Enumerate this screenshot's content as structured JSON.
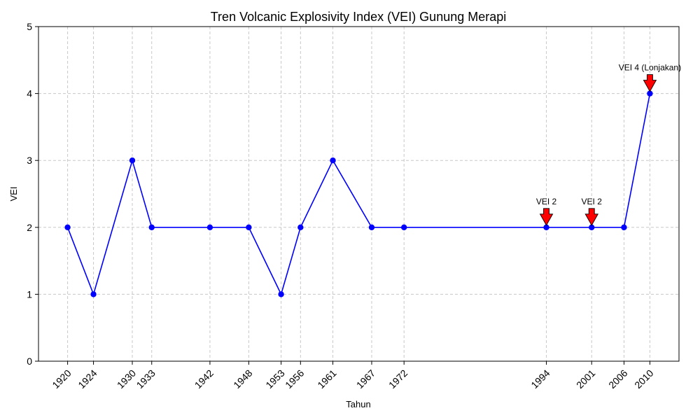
{
  "chart_data": {
    "type": "line",
    "title": "Tren Volcanic Explosivity Index (VEI) Gunung Merapi",
    "xlabel": "Tahun",
    "ylabel": "VEI",
    "x": [
      1920,
      1924,
      1930,
      1933,
      1942,
      1948,
      1953,
      1956,
      1961,
      1967,
      1972,
      1994,
      2001,
      2006,
      2010
    ],
    "xtick_labels": [
      "1920",
      "1924",
      "1930",
      "1933",
      "1942",
      "1948",
      "1953",
      "1956",
      "1961",
      "1967",
      "1972",
      "1994",
      "2001",
      "2006",
      "2010"
    ],
    "series": [
      {
        "name": "VEI",
        "values": [
          2,
          1,
          3,
          2,
          2,
          2,
          1,
          2,
          3,
          2,
          2,
          2,
          2,
          2,
          4
        ],
        "color": "#0000ff"
      }
    ],
    "xlim": [
      1915.5,
      2014.5
    ],
    "ylim": [
      0,
      5
    ],
    "yticks": [
      0,
      1,
      2,
      3,
      4,
      5
    ],
    "ytick_labels": [
      "0",
      "1",
      "2",
      "3",
      "4",
      "5"
    ],
    "grid": true,
    "annotations": [
      {
        "text": "VEI 2",
        "x": 1994,
        "y": 2
      },
      {
        "text": "VEI 2",
        "x": 2001,
        "y": 2
      },
      {
        "text": "VEI 4 (Lonjakan)",
        "x": 2010,
        "y": 4
      }
    ],
    "annotation_color": "#ff0000"
  }
}
